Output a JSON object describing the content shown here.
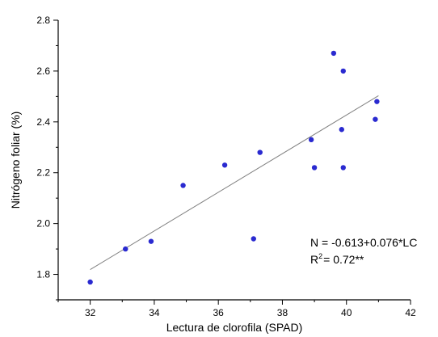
{
  "chart_data": {
    "type": "scatter",
    "xlabel": "Lectura de clorofila (SPAD)",
    "ylabel": "Nitrógeno foliar (%)",
    "xlim": [
      31,
      42
    ],
    "ylim": [
      1.7,
      2.8
    ],
    "x_ticks": [
      32,
      34,
      36,
      38,
      40,
      42
    ],
    "x_tick_labels": [
      "32",
      "34",
      "36",
      "38",
      "40",
      "42"
    ],
    "y_ticks": [
      1.8,
      2.0,
      2.2,
      2.4,
      2.6,
      2.8
    ],
    "y_tick_labels": [
      "1.8",
      "2.0",
      "2.2",
      "2.4",
      "2.6",
      "2.8"
    ],
    "points_color": "#2a2ad0",
    "fit_line_color": "#808080",
    "points": [
      {
        "x": 32.0,
        "y": 1.77
      },
      {
        "x": 33.1,
        "y": 1.9
      },
      {
        "x": 33.9,
        "y": 1.93
      },
      {
        "x": 34.9,
        "y": 2.15
      },
      {
        "x": 36.2,
        "y": 2.23
      },
      {
        "x": 37.1,
        "y": 1.94
      },
      {
        "x": 37.3,
        "y": 2.28
      },
      {
        "x": 38.9,
        "y": 2.33
      },
      {
        "x": 39.0,
        "y": 2.22
      },
      {
        "x": 39.6,
        "y": 2.67
      },
      {
        "x": 39.85,
        "y": 2.37
      },
      {
        "x": 39.9,
        "y": 2.22
      },
      {
        "x": 39.9,
        "y": 2.6
      },
      {
        "x": 40.9,
        "y": 2.41
      },
      {
        "x": 40.95,
        "y": 2.48
      }
    ],
    "fit_line": {
      "x_start": 32.0,
      "x_end": 41.0,
      "intercept": -0.613,
      "slope": 0.076
    },
    "annotation": {
      "equation": "N = -0.613+0.076*LC",
      "r2_label": "R",
      "r2_sup": "2",
      "r2_value": "= 0.72**"
    }
  }
}
